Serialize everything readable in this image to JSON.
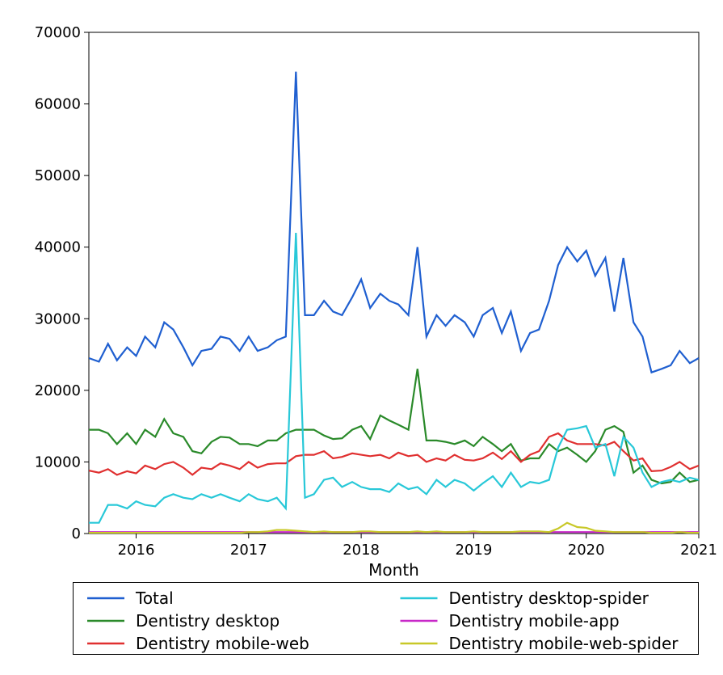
{
  "chart": {
    "type": "line",
    "background_color": "#ffffff",
    "axis_color": "#000000",
    "tick_fontsize": 18,
    "label_fontsize": 20,
    "line_width": 2.2,
    "xlabel": "Month",
    "xlim": [
      2015.58,
      2021.0
    ],
    "ylim": [
      0,
      70000
    ],
    "xticks": [
      2016,
      2017,
      2018,
      2019,
      2020,
      2021
    ],
    "yticks": [
      0,
      10000,
      20000,
      30000,
      40000,
      50000,
      60000,
      70000
    ],
    "x": [
      2015.58,
      2015.67,
      2015.75,
      2015.83,
      2015.92,
      2016.0,
      2016.08,
      2016.17,
      2016.25,
      2016.33,
      2016.42,
      2016.5,
      2016.58,
      2016.67,
      2016.75,
      2016.83,
      2016.92,
      2017.0,
      2017.08,
      2017.17,
      2017.25,
      2017.33,
      2017.42,
      2017.5,
      2017.58,
      2017.67,
      2017.75,
      2017.83,
      2017.92,
      2018.0,
      2018.08,
      2018.17,
      2018.25,
      2018.33,
      2018.42,
      2018.5,
      2018.58,
      2018.67,
      2018.75,
      2018.83,
      2018.92,
      2019.0,
      2019.08,
      2019.17,
      2019.25,
      2019.33,
      2019.42,
      2019.5,
      2019.58,
      2019.67,
      2019.75,
      2019.83,
      2019.92,
      2020.0,
      2020.08,
      2020.17,
      2020.25,
      2020.33,
      2020.42,
      2020.5,
      2020.58,
      2020.67,
      2020.75,
      2020.83,
      2020.92,
      2021.0
    ],
    "series": [
      {
        "name": "Total",
        "color": "#1f5fd0",
        "legend_label": "Total",
        "y": [
          24500,
          24000,
          26500,
          24200,
          26000,
          24800,
          27500,
          26000,
          29500,
          28500,
          26000,
          23500,
          25500,
          25800,
          27500,
          27200,
          25500,
          27500,
          25500,
          26000,
          27000,
          27500,
          64500,
          30500,
          30500,
          32500,
          31000,
          30500,
          33000,
          35500,
          31500,
          33500,
          32500,
          32000,
          30500,
          40000,
          27500,
          30500,
          29000,
          30500,
          29500,
          27500,
          30500,
          31500,
          28000,
          31000,
          25500,
          28000,
          28500,
          32500,
          37500,
          40000,
          38000,
          39500,
          36000,
          38500,
          31000,
          38500,
          29500,
          27500,
          22500,
          23000,
          23500,
          25500,
          23800,
          24500
        ]
      },
      {
        "name": "Dentistry desktop",
        "color": "#2a8a2a",
        "legend_label": "Dentistry desktop",
        "y": [
          14500,
          14500,
          14000,
          12500,
          14000,
          12500,
          14500,
          13500,
          16000,
          14000,
          13500,
          11500,
          11200,
          12800,
          13500,
          13400,
          12500,
          12500,
          12200,
          13000,
          13000,
          14000,
          14500,
          14500,
          14500,
          13700,
          13200,
          13300,
          14500,
          15000,
          13200,
          16500,
          15800,
          15200,
          14500,
          23000,
          13000,
          13000,
          12800,
          12500,
          13000,
          12200,
          13500,
          12500,
          11500,
          12500,
          10200,
          10500,
          10500,
          12500,
          11500,
          12000,
          11000,
          10000,
          11500,
          14500,
          15000,
          14200,
          8500,
          9500,
          7500,
          7000,
          7200,
          8500,
          7200,
          7500
        ]
      },
      {
        "name": "Dentistry mobile-web",
        "color": "#e03030",
        "legend_label": "Dentistry mobile-web",
        "y": [
          8800,
          8500,
          9000,
          8200,
          8700,
          8400,
          9500,
          9000,
          9700,
          10000,
          9200,
          8200,
          9200,
          9000,
          9800,
          9500,
          9000,
          10000,
          9200,
          9700,
          9800,
          9800,
          10800,
          11000,
          11000,
          11500,
          10500,
          10700,
          11200,
          11000,
          10800,
          11000,
          10500,
          11300,
          10800,
          11000,
          10000,
          10500,
          10200,
          11000,
          10300,
          10200,
          10500,
          11300,
          10400,
          11500,
          10000,
          11000,
          11500,
          13500,
          14000,
          13000,
          12500,
          12500,
          12500,
          12300,
          12800,
          11500,
          10200,
          10500,
          8700,
          8800,
          9300,
          10000,
          9000,
          9500
        ]
      },
      {
        "name": "Dentistry desktop-spider",
        "color": "#28c8d8",
        "legend_label": "Dentistry desktop-spider",
        "y": [
          1500,
          1500,
          4000,
          4000,
          3500,
          4500,
          4000,
          3800,
          5000,
          5500,
          5000,
          4800,
          5500,
          5000,
          5500,
          5000,
          4500,
          5500,
          4800,
          4500,
          5000,
          3500,
          42000,
          5000,
          5500,
          7500,
          7800,
          6500,
          7200,
          6500,
          6200,
          6200,
          5800,
          7000,
          6200,
          6500,
          5500,
          7500,
          6500,
          7500,
          7000,
          6000,
          7000,
          8000,
          6500,
          8500,
          6500,
          7200,
          7000,
          7500,
          12000,
          14500,
          14700,
          15000,
          12000,
          12500,
          8000,
          13500,
          12000,
          8500,
          6500,
          7200,
          7500,
          7200,
          7800,
          7500
        ]
      },
      {
        "name": "Dentistry mobile-app",
        "color": "#c828c8",
        "legend_label": "Dentistry mobile-app",
        "y": [
          200,
          200,
          200,
          200,
          200,
          200,
          200,
          200,
          200,
          200,
          200,
          200,
          200,
          200,
          200,
          200,
          200,
          200,
          200,
          200,
          200,
          200,
          200,
          200,
          200,
          200,
          200,
          200,
          200,
          200,
          200,
          200,
          200,
          200,
          200,
          200,
          200,
          200,
          200,
          200,
          200,
          200,
          200,
          200,
          200,
          200,
          200,
          200,
          200,
          200,
          200,
          200,
          200,
          200,
          200,
          200,
          200,
          200,
          200,
          200,
          200,
          200,
          200,
          200,
          200,
          200
        ]
      },
      {
        "name": "Dentistry mobile-web-spider",
        "color": "#c8c828",
        "legend_label": "Dentistry mobile-web-spider",
        "y": [
          100,
          100,
          100,
          100,
          100,
          100,
          100,
          100,
          100,
          100,
          100,
          100,
          100,
          100,
          100,
          100,
          100,
          200,
          200,
          300,
          500,
          500,
          400,
          300,
          200,
          300,
          200,
          200,
          200,
          300,
          300,
          200,
          200,
          200,
          200,
          300,
          200,
          300,
          200,
          200,
          200,
          300,
          200,
          200,
          200,
          200,
          300,
          300,
          300,
          200,
          700,
          1500,
          900,
          800,
          400,
          300,
          200,
          200,
          200,
          200,
          100,
          100,
          100,
          200,
          100,
          100
        ]
      }
    ],
    "legend": {
      "columns": 2,
      "position": "bottom"
    }
  }
}
